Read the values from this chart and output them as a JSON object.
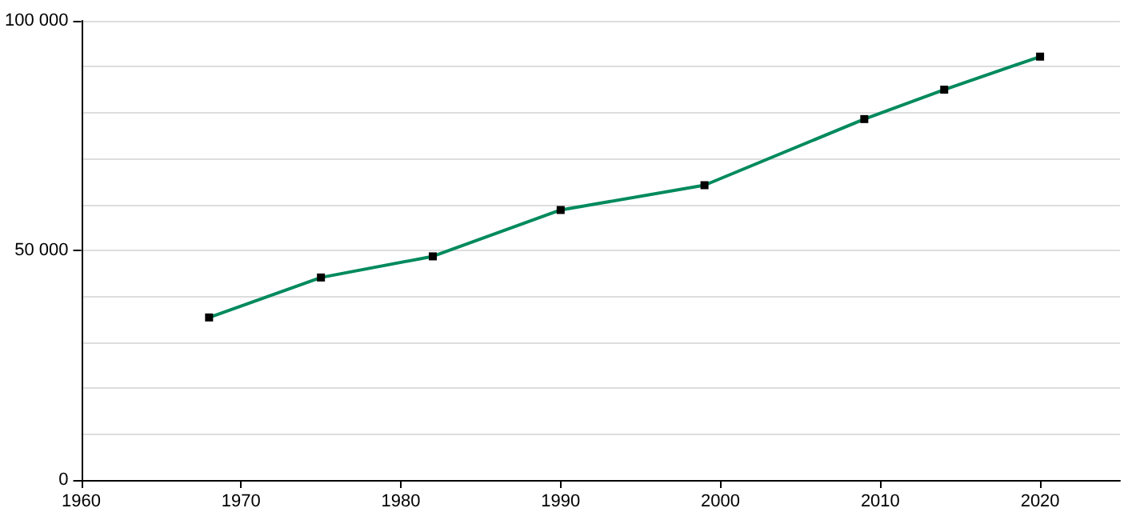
{
  "chart_data": {
    "type": "line",
    "x": [
      1968,
      1975,
      1982,
      1990,
      1999,
      2009,
      2014,
      2020
    ],
    "series": [
      {
        "color": "#008a5e",
        "values": [
          35400,
          44100,
          48700,
          58800,
          64200,
          78600,
          85000,
          92200
        ]
      }
    ],
    "xlim": [
      1960,
      2025
    ],
    "xticks": [
      1960,
      1970,
      1980,
      1990,
      2000,
      2010,
      2020
    ],
    "ylim": [
      0,
      100000
    ],
    "yticks": [
      0,
      {
        "value": 10000,
        "label": null
      },
      {
        "value": 20000,
        "label": null
      },
      {
        "value": 30000,
        "label": null
      },
      {
        "value": 40000,
        "label": null
      },
      {
        "value": 50000,
        "label": "50 000"
      },
      {
        "value": 60000,
        "label": null
      },
      {
        "value": 70000,
        "label": null
      },
      {
        "value": 80000,
        "label": null
      },
      {
        "value": 90000,
        "label": null
      },
      {
        "value": 100000,
        "label": "100 000"
      }
    ],
    "grid": "y",
    "marker": "square",
    "line_style": "solid"
  }
}
